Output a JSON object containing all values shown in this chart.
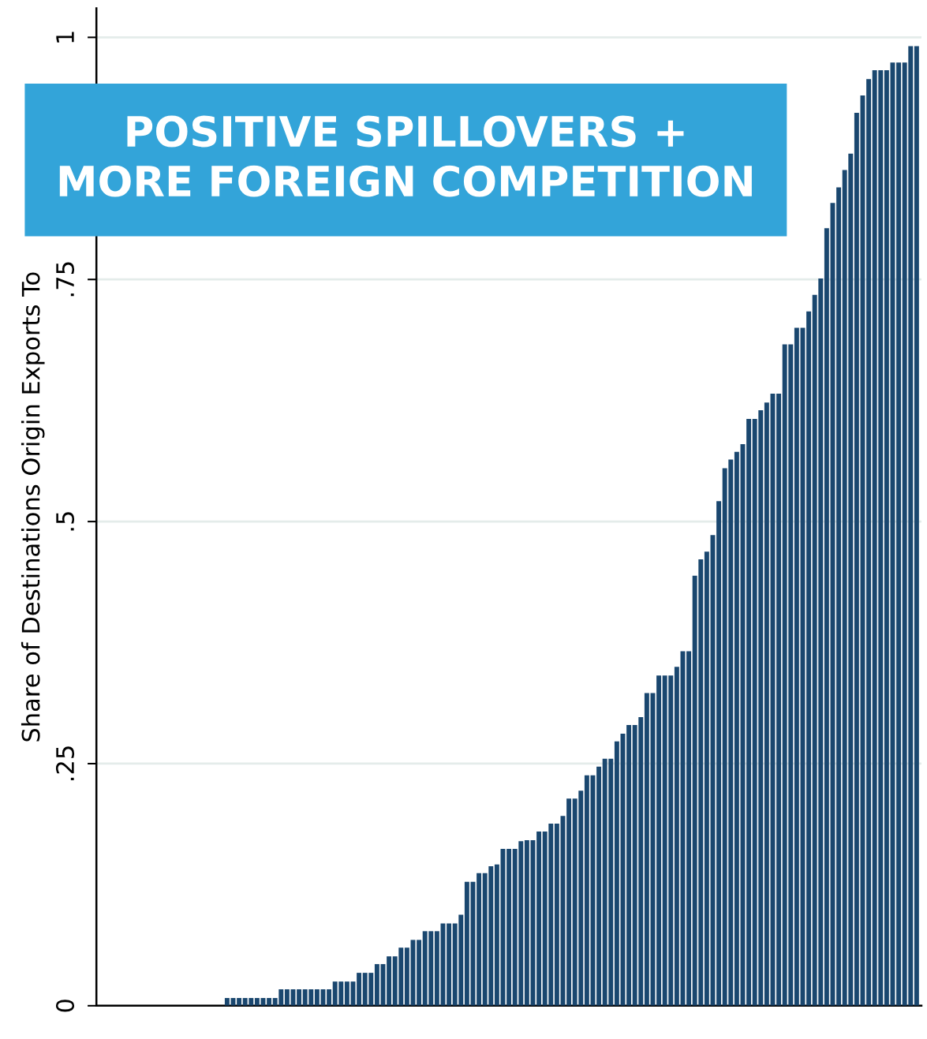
{
  "chart_data": {
    "type": "bar",
    "title": "POSITIVE SPILLOVERS +\nMORE FOREIGN COMPETITION",
    "ylabel": "Share of Destinations Origin Exports To",
    "categories": [
      null,
      null,
      null,
      null,
      null,
      null,
      null,
      null,
      null,
      null,
      null,
      null,
      null,
      null,
      null,
      null,
      null,
      null,
      null,
      null,
      null,
      null,
      null,
      null,
      null,
      null,
      null,
      null,
      null,
      null,
      null,
      null,
      null,
      null,
      null,
      null,
      null,
      null,
      null,
      null,
      null,
      null,
      null,
      null,
      null,
      null,
      null,
      null,
      null,
      null,
      null,
      null,
      null,
      null,
      null,
      null,
      null,
      null,
      null,
      null,
      null,
      null,
      null,
      null,
      null,
      null,
      null,
      null,
      null,
      null,
      null,
      null,
      null,
      null,
      null,
      null,
      null,
      null,
      null,
      null,
      null,
      null,
      null,
      null,
      null,
      null,
      null,
      null,
      null,
      null,
      null,
      null,
      null,
      null,
      null,
      null,
      null,
      null,
      null,
      null,
      null,
      null,
      null,
      null,
      null,
      null,
      null,
      null,
      null,
      null,
      null,
      null,
      null,
      null,
      null,
      null,
      null,
      null,
      null,
      null,
      null,
      null,
      null,
      null,
      null,
      null,
      null,
      null,
      null,
      null,
      null,
      null,
      null,
      null,
      null,
      null,
      null
    ],
    "values": [
      0,
      0,
      0,
      0,
      0,
      0,
      0,
      0,
      0,
      0,
      0,
      0,
      0,
      0,
      0,
      0,
      0,
      0,
      0,
      0,
      0,
      0.008,
      0.008,
      0.008,
      0.008,
      0.008,
      0.008,
      0.008,
      0.008,
      0.008,
      0.017,
      0.017,
      0.017,
      0.017,
      0.017,
      0.017,
      0.017,
      0.017,
      0.017,
      0.025,
      0.025,
      0.025,
      0.025,
      0.034,
      0.034,
      0.034,
      0.043,
      0.043,
      0.051,
      0.051,
      0.06,
      0.06,
      0.068,
      0.068,
      0.077,
      0.077,
      0.077,
      0.085,
      0.085,
      0.085,
      0.094,
      0.128,
      0.128,
      0.137,
      0.137,
      0.144,
      0.146,
      0.162,
      0.162,
      0.162,
      0.17,
      0.171,
      0.171,
      0.18,
      0.18,
      0.188,
      0.188,
      0.196,
      0.214,
      0.214,
      0.222,
      0.238,
      0.238,
      0.247,
      0.255,
      0.255,
      0.273,
      0.281,
      0.29,
      0.29,
      0.298,
      0.323,
      0.323,
      0.341,
      0.341,
      0.341,
      0.35,
      0.366,
      0.366,
      0.444,
      0.461,
      0.469,
      0.486,
      0.521,
      0.555,
      0.564,
      0.572,
      0.58,
      0.606,
      0.606,
      0.615,
      0.623,
      0.632,
      0.632,
      0.683,
      0.683,
      0.7,
      0.7,
      0.717,
      0.734,
      0.751,
      0.803,
      0.829,
      0.845,
      0.863,
      0.88,
      0.922,
      0.94,
      0.957,
      0.966,
      0.966,
      0.966,
      0.974,
      0.974,
      0.974,
      0.991,
      0.991
    ],
    "color": "#1a476f",
    "ylim": [
      0,
      1.03
    ],
    "yticks": [
      0,
      {
        "value": 0.25,
        "label": ".25"
      },
      {
        "value": 0.5,
        "label": ".5"
      },
      {
        "value": 0.75,
        "label": ".75"
      },
      1
    ],
    "grid": "y"
  }
}
